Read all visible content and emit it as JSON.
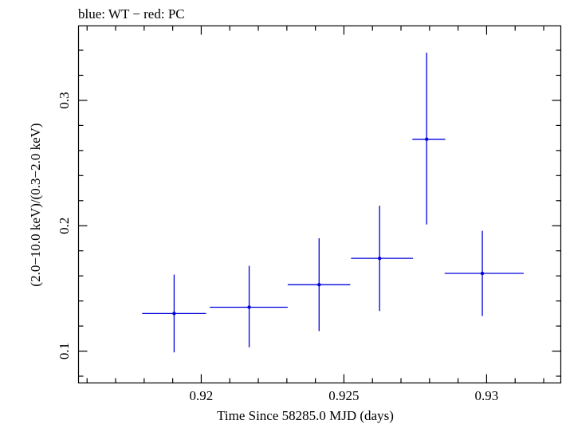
{
  "chart_data": {
    "type": "scatter",
    "title": "blue: WT − red: PC",
    "xlabel": "Time Since 58285.0 MJD (days)",
    "ylabel": "(2.0−10.0 keV)/(0.3−2.0 keV)",
    "xlim": [
      0.9157,
      0.9326
    ],
    "ylim": [
      0.0746,
      0.3594
    ],
    "x_ticks": [
      0.92,
      0.925,
      0.93
    ],
    "x_tick_labels": [
      "0.92",
      "0.925",
      "0.93"
    ],
    "y_ticks": [
      0.1,
      0.2,
      0.3
    ],
    "y_tick_labels": [
      "0.1",
      "0.2",
      "0.3"
    ],
    "series": [
      {
        "name": "WT",
        "color": "#0000dd",
        "points": [
          {
            "x": 0.91905,
            "xlo": 0.91793,
            "xhi": 0.92017,
            "y": 0.13,
            "ylo": 0.099,
            "yhi": 0.161
          },
          {
            "x": 0.92168,
            "xlo": 0.9203,
            "xhi": 0.92303,
            "y": 0.135,
            "ylo": 0.103,
            "yhi": 0.168
          },
          {
            "x": 0.92413,
            "xlo": 0.92303,
            "xhi": 0.92522,
            "y": 0.153,
            "ylo": 0.116,
            "yhi": 0.19
          },
          {
            "x": 0.92625,
            "xlo": 0.92525,
            "xhi": 0.92742,
            "y": 0.174,
            "ylo": 0.132,
            "yhi": 0.216
          },
          {
            "x": 0.9279,
            "xlo": 0.9274,
            "xhi": 0.92855,
            "y": 0.269,
            "ylo": 0.201,
            "yhi": 0.338
          },
          {
            "x": 0.92985,
            "xlo": 0.92853,
            "xhi": 0.9313,
            "y": 0.162,
            "ylo": 0.128,
            "yhi": 0.196
          }
        ]
      }
    ]
  }
}
